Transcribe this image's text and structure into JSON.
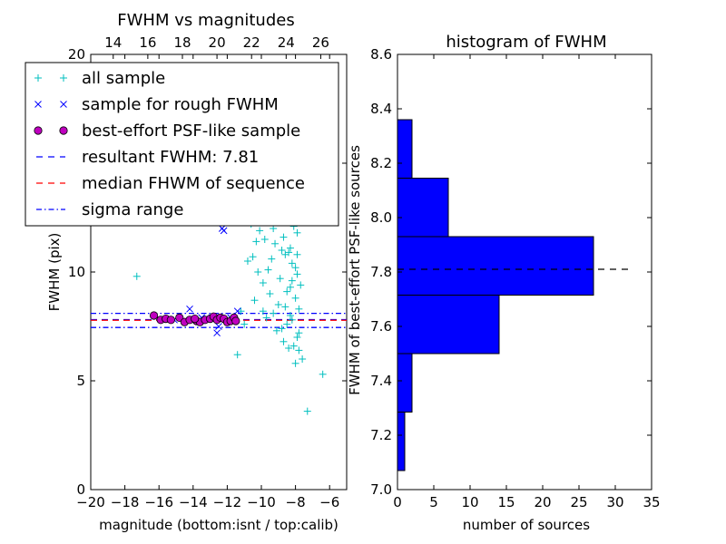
{
  "chart_data": [
    {
      "type": "scatter",
      "title": "FWHM vs magnitudes",
      "xlabel": "magnitude (bottom:isnt / top:calib)",
      "ylabel": "FWHM (pix)",
      "xlim": [
        -20,
        -5
      ],
      "ylim": [
        0,
        20
      ],
      "x_ticks": [
        -20,
        -18,
        -16,
        -14,
        -12,
        -10,
        -8,
        -6
      ],
      "x_tick_labels": [
        "−20",
        "−18",
        "−16",
        "−14",
        "−12",
        "−10",
        "−8",
        "−6"
      ],
      "y_ticks": [
        0,
        5,
        10,
        15,
        20
      ],
      "y_tick_labels": [
        "0",
        "5",
        "10",
        "15",
        "20"
      ],
      "top_xlim": [
        12.7,
        27.5
      ],
      "top_ticks": [
        14,
        16,
        18,
        20,
        22,
        24,
        26
      ],
      "top_tick_labels": [
        "14",
        "16",
        "18",
        "20",
        "22",
        "24",
        "26"
      ],
      "legend_position": "top-left",
      "legend": [
        {
          "label": "all sample",
          "marker": "plus",
          "color": "#00bfbf"
        },
        {
          "label": "sample for rough FWHM",
          "marker": "x",
          "color": "#0000ff"
        },
        {
          "label": "best-effort PSF-like sample",
          "marker": "circle",
          "color": "#bf00bf"
        },
        {
          "label": "resultant FWHM: 7.81",
          "marker": "dash",
          "color": "#0000ff"
        },
        {
          "label": "median FHWM of sequence",
          "marker": "dash",
          "color": "#ff0000"
        },
        {
          "label": "sigma range",
          "marker": "dashdot",
          "color": "#0000ff"
        }
      ],
      "hlines": [
        {
          "y": 7.81,
          "style": "dashed",
          "color": "#0000ff"
        },
        {
          "y": 7.78,
          "style": "dashed",
          "color": "#ff0000"
        },
        {
          "y": 8.1,
          "style": "dashdot",
          "color": "#0000ff"
        },
        {
          "y": 7.45,
          "style": "dashdot",
          "color": "#0000ff"
        }
      ],
      "series": [
        {
          "name": "all sample",
          "points": [
            [
              -17.3,
              9.8
            ],
            [
              -11.4,
              6.2
            ],
            [
              -11.2,
              8.2
            ],
            [
              -7.3,
              3.6
            ],
            [
              -6.4,
              5.3
            ],
            [
              -7.6,
              6.0
            ],
            [
              -10.5,
              10.7
            ],
            [
              -10.2,
              10.0
            ],
            [
              -9.9,
              9.5
            ],
            [
              -9.8,
              11.5
            ],
            [
              -9.5,
              9.0
            ],
            [
              -9.3,
              12.0
            ],
            [
              -9.0,
              8.5
            ],
            [
              -8.8,
              11.0
            ],
            [
              -8.6,
              12.3
            ],
            [
              -8.5,
              7.6
            ],
            [
              -8.3,
              9.3
            ],
            [
              -8.2,
              10.4
            ],
            [
              -8.1,
              6.6
            ],
            [
              -8.0,
              8.8
            ],
            [
              -7.9,
              11.8
            ],
            [
              -7.8,
              7.2
            ],
            [
              -7.9,
              9.9
            ],
            [
              -8.4,
              12.5
            ],
            [
              -8.6,
              10.8
            ],
            [
              -8.9,
              9.7
            ],
            [
              -9.2,
              11.3
            ],
            [
              -9.6,
              10.1
            ],
            [
              -10.1,
              11.9
            ],
            [
              -10.8,
              10.5
            ],
            [
              -11.0,
              7.6
            ],
            [
              -10.4,
              8.7
            ],
            [
              -9.7,
              7.9
            ],
            [
              -9.1,
              7.3
            ],
            [
              -8.7,
              6.8
            ],
            [
              -8.4,
              6.5
            ],
            [
              -8.2,
              7.8
            ],
            [
              -8.0,
              5.8
            ],
            [
              -7.8,
              6.4
            ],
            [
              -8.3,
              11.1
            ],
            [
              -8.1,
              12.1
            ],
            [
              -7.9,
              10.8
            ],
            [
              -7.8,
              8.3
            ],
            [
              -8.5,
              9.1
            ],
            [
              -9.4,
              10.6
            ],
            [
              -10.0,
              12.4
            ],
            [
              -10.6,
              12.2
            ],
            [
              -8.8,
              7.4
            ],
            [
              -9.3,
              8.1
            ],
            [
              -8.2,
              9.6
            ],
            [
              -9.1,
              12.5
            ],
            [
              -8.7,
              11.6
            ],
            [
              -8.3,
              8.0
            ],
            [
              -7.7,
              9.4
            ],
            [
              -7.9,
              7.0
            ],
            [
              -8.6,
              8.4
            ],
            [
              -9.9,
              8.2
            ],
            [
              -10.3,
              11.4
            ],
            [
              -8.0,
              10.2
            ],
            [
              -8.4,
              10.9
            ]
          ]
        },
        {
          "name": "sample for rough FWHM",
          "points": [
            [
              -12.3,
              12.0
            ],
            [
              -12.2,
              11.9
            ],
            [
              -14.2,
              8.3
            ],
            [
              -12.6,
              7.2
            ],
            [
              -12.5,
              7.5
            ],
            [
              -11.4,
              8.2
            ],
            [
              -13.5,
              7.9
            ],
            [
              -15.1,
              7.8
            ],
            [
              -12.9,
              7.9
            ],
            [
              -11.8,
              7.9
            ]
          ]
        },
        {
          "name": "best-effort PSF-like sample",
          "points": [
            [
              -16.3,
              8.0
            ],
            [
              -15.9,
              7.8
            ],
            [
              -15.6,
              7.85
            ],
            [
              -15.3,
              7.8
            ],
            [
              -14.8,
              7.9
            ],
            [
              -14.5,
              7.7
            ],
            [
              -14.2,
              7.8
            ],
            [
              -13.8,
              7.75
            ],
            [
              -13.6,
              7.7
            ],
            [
              -13.3,
              7.8
            ],
            [
              -13.0,
              7.85
            ],
            [
              -12.8,
              7.95
            ],
            [
              -12.6,
              7.8
            ],
            [
              -12.4,
              7.9
            ],
            [
              -12.2,
              7.85
            ],
            [
              -12.0,
              7.7
            ],
            [
              -11.8,
              7.75
            ],
            [
              -11.6,
              7.9
            ],
            [
              -11.5,
              7.75
            ],
            [
              -13.9,
              7.85
            ]
          ]
        }
      ]
    },
    {
      "type": "bar",
      "orientation": "horizontal",
      "title": "histogram of FWHM",
      "xlabel": "number of sources",
      "ylabel": "FWHM of best-effort PSF-like sources",
      "xlim": [
        0,
        35
      ],
      "ylim": [
        7.0,
        8.6
      ],
      "x_ticks": [
        0,
        5,
        10,
        15,
        20,
        25,
        30,
        35
      ],
      "x_tick_labels": [
        "0",
        "5",
        "10",
        "15",
        "20",
        "25",
        "30",
        "35"
      ],
      "y_ticks": [
        7.0,
        7.2,
        7.4,
        7.6,
        7.8,
        8.0,
        8.2,
        8.4,
        8.6
      ],
      "y_tick_labels": [
        "7.0",
        "7.2",
        "7.4",
        "7.6",
        "7.8",
        "8.0",
        "8.2",
        "8.4",
        "8.6"
      ],
      "bin_edges": [
        7.07,
        7.285,
        7.5,
        7.715,
        7.93,
        8.145,
        8.36
      ],
      "counts": [
        1,
        2,
        14,
        27,
        7,
        2
      ],
      "bar_color": "#0000ff",
      "hline": {
        "y": 7.81,
        "x_range": [
          0,
          32.5
        ],
        "style": "dashed",
        "color": "#000000"
      }
    }
  ]
}
